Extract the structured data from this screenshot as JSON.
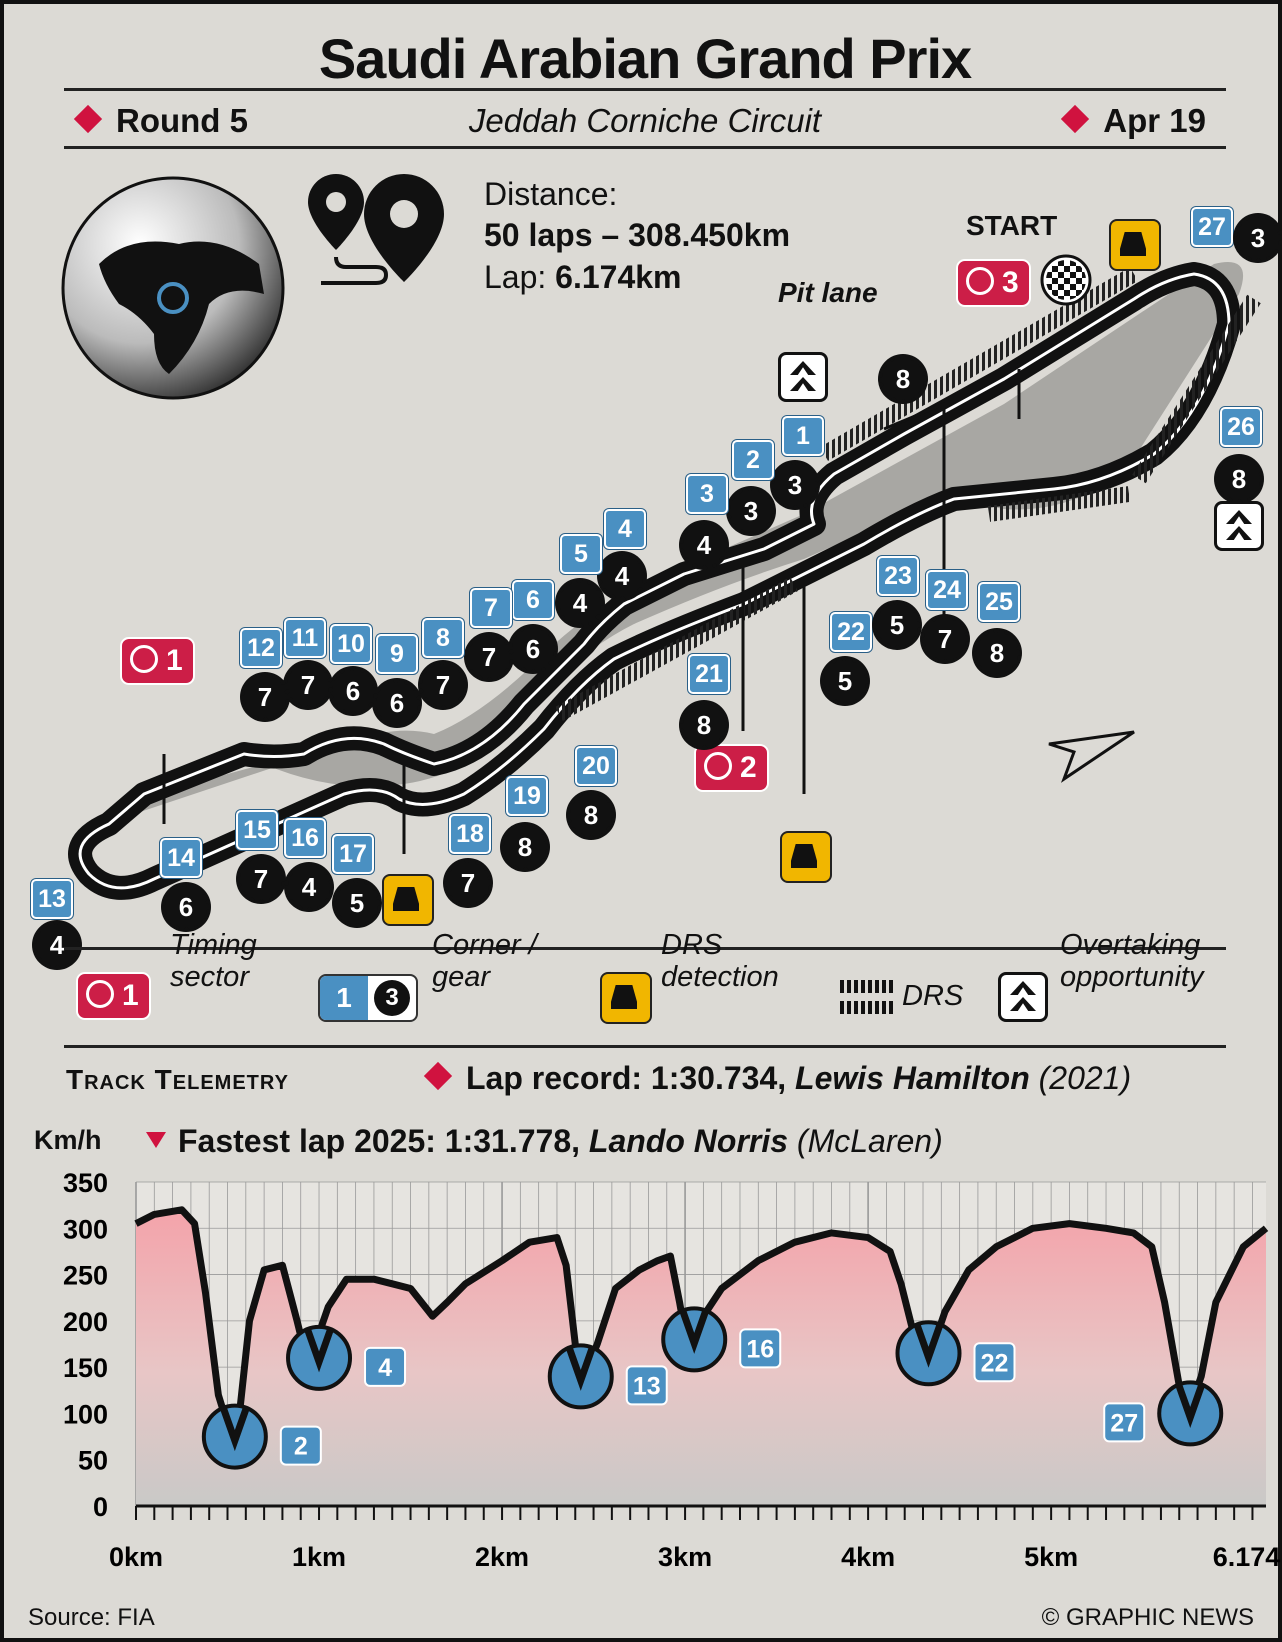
{
  "header": {
    "title": "Saudi Arabian Grand Prix",
    "round": "Round 5",
    "circuit": "Jeddah Corniche Circuit",
    "date": "Apr 19"
  },
  "info": {
    "distance_label": "Distance:",
    "distance_value": "50 laps – 308.450km",
    "lap_label": "Lap:",
    "lap_value": "6.174km"
  },
  "track": {
    "start_label": "START",
    "pit_lane_label": "Pit lane",
    "timing": [
      "1",
      "2",
      "3"
    ],
    "corners": [
      {
        "n": "1",
        "gear": "3"
      },
      {
        "n": "2",
        "gear": "3"
      },
      {
        "n": "3",
        "gear": "4"
      },
      {
        "n": "4",
        "gear": "4"
      },
      {
        "n": "5",
        "gear": "4"
      },
      {
        "n": "6",
        "gear": "6"
      },
      {
        "n": "7",
        "gear": "7"
      },
      {
        "n": "8",
        "gear": "7"
      },
      {
        "n": "9",
        "gear": "6"
      },
      {
        "n": "10",
        "gear": "6"
      },
      {
        "n": "11",
        "gear": "7"
      },
      {
        "n": "12",
        "gear": "7"
      },
      {
        "n": "13",
        "gear": "4"
      },
      {
        "n": "14",
        "gear": "6"
      },
      {
        "n": "15",
        "gear": "7"
      },
      {
        "n": "16",
        "gear": "4"
      },
      {
        "n": "17",
        "gear": "5"
      },
      {
        "n": "18",
        "gear": "7"
      },
      {
        "n": "19",
        "gear": "8"
      },
      {
        "n": "20",
        "gear": "8"
      },
      {
        "n": "21",
        "gear": "8"
      },
      {
        "n": "22",
        "gear": "5"
      },
      {
        "n": "23",
        "gear": "5"
      },
      {
        "n": "24",
        "gear": "7"
      },
      {
        "n": "25",
        "gear": "8"
      },
      {
        "n": "26",
        "gear": "8"
      },
      {
        "n": "27",
        "gear": "3"
      }
    ],
    "extra_gear": "8"
  },
  "legend": {
    "timing_num": "1",
    "timing": "Timing sector",
    "corner_num": "1",
    "corner_gear": "3",
    "corner": "Corner / gear",
    "drs_detection": "DRS detection",
    "drs": "DRS",
    "overtaking": "Overtaking opportunity"
  },
  "telemetry": {
    "title": "Track Telemetry",
    "lap_record": "Lap record: 1:30.734,",
    "lap_record_driver": "Lewis Hamilton",
    "lap_record_year": "(2021)",
    "fastest_lap": "Fastest lap 2025: 1:31.778,",
    "fastest_driver": "Lando Norris",
    "fastest_team": "(McLaren)"
  },
  "chart_data": {
    "type": "area",
    "ylabel": "Km/h",
    "ylim": [
      0,
      350
    ],
    "yticks": [
      0,
      50,
      100,
      150,
      200,
      250,
      300,
      350
    ],
    "xlim": [
      0,
      6.174
    ],
    "xtick_labels": [
      "0km",
      "1km",
      "2km",
      "3km",
      "4km",
      "5km",
      "6.174km"
    ],
    "xtick_values": [
      0,
      1,
      2,
      3,
      4,
      5,
      6.174
    ],
    "x": [
      0,
      0.1,
      0.25,
      0.32,
      0.38,
      0.45,
      0.52,
      0.56,
      0.62,
      0.7,
      0.8,
      0.88,
      0.93,
      0.98,
      1.05,
      1.15,
      1.3,
      1.4,
      1.5,
      1.58,
      1.62,
      1.7,
      1.8,
      2.0,
      2.15,
      2.3,
      2.35,
      2.4,
      2.45,
      2.52,
      2.62,
      2.75,
      2.85,
      2.92,
      2.97,
      3.01,
      3.05,
      3.1,
      3.2,
      3.4,
      3.6,
      3.8,
      4.0,
      4.12,
      4.18,
      4.25,
      4.32,
      4.36,
      4.42,
      4.55,
      4.7,
      4.9,
      5.1,
      5.3,
      5.45,
      5.55,
      5.62,
      5.7,
      5.75,
      5.82,
      5.9,
      6.05,
      6.174
    ],
    "values": [
      305,
      315,
      320,
      305,
      230,
      120,
      75,
      90,
      200,
      255,
      260,
      200,
      160,
      175,
      215,
      245,
      245,
      240,
      235,
      215,
      205,
      220,
      240,
      265,
      285,
      290,
      260,
      175,
      140,
      175,
      235,
      255,
      265,
      270,
      220,
      175,
      185,
      205,
      235,
      265,
      285,
      295,
      290,
      275,
      240,
      185,
      165,
      175,
      210,
      255,
      280,
      300,
      305,
      300,
      295,
      280,
      220,
      130,
      100,
      140,
      220,
      280,
      300
    ],
    "callouts": [
      {
        "corner": "2",
        "x": 0.54,
        "v": 75
      },
      {
        "corner": "4",
        "x": 1.0,
        "v": 160
      },
      {
        "corner": "13",
        "x": 2.43,
        "v": 140
      },
      {
        "corner": "16",
        "x": 3.05,
        "v": 180
      },
      {
        "corner": "22",
        "x": 4.33,
        "v": 165
      },
      {
        "corner": "27",
        "x": 5.76,
        "v": 100
      }
    ]
  },
  "footer": {
    "source": "Source: FIA",
    "credit": "© GRAPHIC NEWS"
  }
}
